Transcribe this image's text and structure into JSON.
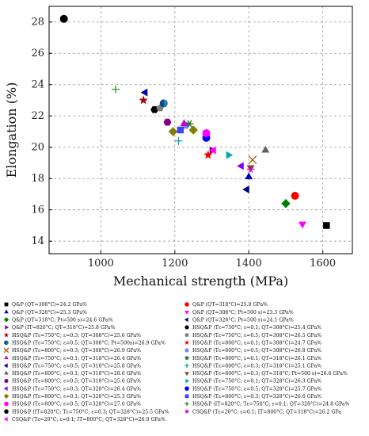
{
  "chart_data": {
    "type": "scatter",
    "xlabel": "Mechanical strength (MPa)",
    "ylabel": "Elongation (%)",
    "xlim": [
      860,
      1680
    ],
    "ylim": [
      13.2,
      29.0
    ],
    "x_ticks": [
      1000,
      1200,
      1400,
      1600
    ],
    "y_ticks": [
      14,
      16,
      18,
      20,
      22,
      24,
      26,
      28
    ],
    "grid": true,
    "legend_position": "below plot, two columns",
    "series": [
      {
        "name": "Q&P (QT=308°C)=24.2 GPa%",
        "marker": "square",
        "color": "#000000",
        "x": 1610,
        "y": 15.0
      },
      {
        "name": "Q&P (QT=318°C)=25.8 GPa%",
        "marker": "circle",
        "color": "#ff0000",
        "x": 1525,
        "y": 16.9
      },
      {
        "name": "Q&P (QT=328°C)=25.3 GPa%",
        "marker": "triangle-up",
        "color": "#0000cc",
        "x": 1400,
        "y": 18.1
      },
      {
        "name": "Q&P (QT=308°C; Pt=500 s)=23.3 GPa%",
        "marker": "triangle-down",
        "color": "#ff00ff",
        "x": 1545,
        "y": 15.1
      },
      {
        "name": "Q&P (QT=318°C; Pt=500 s)=24.6 GPa%",
        "marker": "diamond",
        "color": "#008000",
        "x": 1500,
        "y": 16.4
      },
      {
        "name": "Q&P (QT=328°C; Pt=500 s)=24.1 GPa%",
        "marker": "triangle-left",
        "color": "#000080",
        "x": 1395,
        "y": 17.3
      },
      {
        "name": "Q&P (IT=820°C; QT=318°C)=25.8 GPa%",
        "marker": "triangle-right",
        "color": "#800080",
        "x": 1300,
        "y": 19.8
      },
      {
        "name": "HSQ&P (Tε=750°C; ε=0.1; QT=308°C)=25.4 GPa%",
        "marker": "hexagon",
        "color": "#000000",
        "x": 1145,
        "y": 22.4
      },
      {
        "name": "HSQ&P (Tε=750°C; ε=0.3; QT=308°C)=25.6 GPa%",
        "marker": "star",
        "color": "#b00000",
        "x": 1115,
        "y": 23.0
      },
      {
        "name": "HSQ&P (Tε=750°C; ε=0.5; QT=308°C)=26.5 GPa%",
        "marker": "pentagon",
        "color": "#808080",
        "x": 1160,
        "y": 22.5
      },
      {
        "name": "HSQ&P (Tε=750°C; ε=0.5; QT=308°C; Pt=500s)=26.9 GPa%",
        "marker": "circle-half",
        "color": "#1f77b4",
        "x": 1170,
        "y": 22.8
      },
      {
        "name": "HSQ&P (Tε=800°C; ε=0.1; QT=308°C)=24.7 GPa%",
        "marker": "star",
        "color": "#ff0000",
        "x": 1290,
        "y": 19.5
      },
      {
        "name": "HSQ&P (Tε=800°C; ε=0.3; QT=308°C)=26.9 GPa%",
        "marker": "x",
        "color": "#b05000",
        "x": 1410,
        "y": 19.2
      },
      {
        "name": "HSQ&P (Tε=800°C; ε=0.5; QT=308°C)=26.8 GPa%",
        "marker": "hexagon",
        "color": "#8080ff",
        "x": 1230,
        "y": 21.4
      },
      {
        "name": "HSQ&P (Tε=750°C; ε=0.1; QT=318°C)=26.4 GPa%",
        "marker": "triangle-up",
        "color": "#cc00cc",
        "x": 1225,
        "y": 21.5
      },
      {
        "name": "HSQ&P (Tε=800°C; ε=0.1; QT=318°C)=26.1 GPa%",
        "marker": "asterisk",
        "color": "#006400",
        "x": 1240,
        "y": 21.5
      },
      {
        "name": "HSQ&P (Tε=750°C; ε=0.5; QT=318°C)=25.8 GPa%",
        "marker": "triangle-left",
        "color": "#0000aa",
        "x": 1120,
        "y": 23.5
      },
      {
        "name": "HSQ&P (Tε=800°C; ε=0.3; QT=318°C)=25.1 GPa%",
        "marker": "plus",
        "color": "#00aaaa",
        "x": 1210,
        "y": 20.4
      },
      {
        "name": "HSQ&P (Tε=800°C; ε=0.1; QT=318°C)=28.6 GPa%",
        "marker": "triangle-up",
        "color": "#606060",
        "x": 1445,
        "y": 19.8
      },
      {
        "name": "HSQ&P (Tε=800°C; ε=0.3; QT=318°C; Pt=500 s)=26.6 GPa%",
        "marker": "triangle-down",
        "color": "#8b4513",
        "x": 1405,
        "y": 18.7
      },
      {
        "name": "HSQ&P (Tε=800°C; ε=0.5; QT=318°C)=25.6 GPa%",
        "marker": "hexagon",
        "color": "#800080",
        "x": 1180,
        "y": 21.6
      },
      {
        "name": "HSQ&P (Tε=750°C; ε=0.1; QT=328°C)=26.3 GPa%",
        "marker": "triangle-right",
        "color": "#00aaaa",
        "x": 1345,
        "y": 19.5
      },
      {
        "name": "HSQ&P (Tε=750°C; ε=0.3; QT=328°C)=26.4 GPa%",
        "marker": "triangle-left",
        "color": "#8000ff",
        "x": 1380,
        "y": 18.8
      },
      {
        "name": "HSQ&P (Tε=750°C; ε=0.5; QT=328°C)=25.7 GPa%",
        "marker": "circle",
        "color": "#0000ff",
        "x": 1285,
        "y": 20.6
      },
      {
        "name": "HSQ&P (Tε=800°C; ε=0.1; QT=328°C)=25.3 GPa%",
        "marker": "diamond",
        "color": "#808000",
        "x": 1250,
        "y": 21.1
      },
      {
        "name": "HSQ&P (Tε=800°C; ε=0.3; QT=328°C)=26.6 GPa%",
        "marker": "square",
        "color": "#4040ff",
        "x": 1215,
        "y": 21.1
      },
      {
        "name": "HSQ&P (Tε=800°C; ε=0.5; QT=328°C)=27.0 GPa%",
        "marker": "circle",
        "color": "#ff00ff",
        "x": 1285,
        "y": 20.9
      },
      {
        "name": "HSQ&P (IT=820°C; Tε=750°C; ε=0.1; QT=328°C)=24.8 GPa%",
        "marker": "plus",
        "color": "#228b22",
        "x": 1040,
        "y": 23.7
      },
      {
        "name": "HSQ&P (IT=820°C; Tε=750°C; ε=0.3; QT=328°C)=25.5 GPa%",
        "marker": "circle",
        "color": "#000000",
        "x": 900,
        "y": 28.2
      },
      {
        "name": "CSQ&P (Tε=20°C; ε=0.1; IT=800°C; QT=318°C)=26.2 GPa",
        "marker": "asterisk",
        "color": "#cc00cc",
        "x": 1405,
        "y": 18.6
      },
      {
        "name": "CSQ&P (Tε=20°C; ε=0.1; IT=800°C; QT=328°C)=26.0 GPa%",
        "marker": "triangle-left",
        "color": "#ff00ff",
        "x": 1305,
        "y": 19.8
      },
      {
        "name": "",
        "marker": "diamond",
        "color": "#808000",
        "x": 1195,
        "y": 21.0
      }
    ],
    "legend": [
      {
        "col": 0,
        "marker": "square",
        "color": "#000000",
        "label": "Q&P (QT=308°C)=24.2 GPa%"
      },
      {
        "col": 0,
        "marker": "triangle-up",
        "color": "#0000cc",
        "label": "Q&P (QT=328°C)=25.3 GPa%"
      },
      {
        "col": 0,
        "marker": "diamond",
        "color": "#008000",
        "label": "Q&P (QT=318°C; Pt=500 s)=24.6 GPa%"
      },
      {
        "col": 0,
        "marker": "triangle-right",
        "color": "#800080",
        "label": "Q&P (IT=820°C; QT=318°C)=25.8 GPa%"
      },
      {
        "col": 0,
        "marker": "star",
        "color": "#b00000",
        "label": "HSQ&P (Tε=750°C; ε=0.3; QT=308°C)=25.6 GPa%"
      },
      {
        "col": 0,
        "marker": "circle-half",
        "color": "#1f77b4",
        "label": "HSQ&P (Tε=750°C; ε=0.5; QT=308°C; Pt=500s)=26.9 GPa%"
      },
      {
        "col": 0,
        "marker": "x",
        "color": "#b05000",
        "label": "HSQ&P (Tε=800°C; ε=0.3; QT=308°C)=26.9 GPa%"
      },
      {
        "col": 0,
        "marker": "triangle-up",
        "color": "#cc00cc",
        "label": "HSQ&P (Tε=750°C; ε=0.1; QT=318°C)=26.4 GPa%"
      },
      {
        "col": 0,
        "marker": "triangle-left",
        "color": "#0000aa",
        "label": "HSQ&P (Tε=750°C; ε=0.5; QT=318°C)=25.8 GPa%"
      },
      {
        "col": 0,
        "marker": "triangle-up",
        "color": "#606060",
        "label": "HSQ&P (Tε=800°C; ε=0.1; QT=318°C)=28.6 GPa%"
      },
      {
        "col": 0,
        "marker": "hexagon",
        "color": "#800080",
        "label": "HSQ&P (Tε=800°C; ε=0.5; QT=318°C)=25.6 GPa%"
      },
      {
        "col": 0,
        "marker": "triangle-left",
        "color": "#8000ff",
        "label": "HSQ&P (Tε=750°C; ε=0.3; QT=328°C)=26.4 GPa%"
      },
      {
        "col": 0,
        "marker": "diamond",
        "color": "#808000",
        "label": "HSQ&P (Tε=800°C; ε=0.1; QT=328°C)=25.3 GPa%"
      },
      {
        "col": 0,
        "marker": "circle",
        "color": "#ff00ff",
        "label": "HSQ&P (Tε=800°C; ε=0.5; QT=328°C)=27.0 GPa%"
      },
      {
        "col": 0,
        "marker": "circle",
        "color": "#000000",
        "label": "HSQ&P (IT=820°C; Tε=750°C; ε=0.3; QT=328°C)=25.5 GPa%"
      },
      {
        "col": 0,
        "marker": "triangle-left",
        "color": "#ff00ff",
        "label": "CSQ&P (Tε=20°C; ε=0.1; IT=800°C; QT=328°C)=26.0 GPa%"
      },
      {
        "col": 1,
        "marker": "circle",
        "color": "#ff0000",
        "label": "Q&P (QT=318°C)=25.8 GPa%"
      },
      {
        "col": 1,
        "marker": "triangle-down",
        "color": "#ff00ff",
        "label": "Q&P (QT=308°C; Pt=500 s)=23.3 GPa%"
      },
      {
        "col": 1,
        "marker": "triangle-left",
        "color": "#000080",
        "label": "Q&P (QT=328°C; Pt=500 s)=24.1 GPa%"
      },
      {
        "col": 1,
        "marker": "hexagon",
        "color": "#000000",
        "label": "HSQ&P (Tε=750°C; ε=0.1; QT=308°C)=25.4 GPa%"
      },
      {
        "col": 1,
        "marker": "pentagon",
        "color": "#808080",
        "label": "HSQ&P (Tε=750°C; ε=0.5; QT=308°C)=26.5 GPa%"
      },
      {
        "col": 1,
        "marker": "star",
        "color": "#ff0000",
        "label": "HSQ&P (Tε=800°C; ε=0.1; QT=308°C)=24.7 GPa%"
      },
      {
        "col": 1,
        "marker": "hexagon",
        "color": "#8080ff",
        "label": "HSQ&P (Tε=800°C; ε=0.5; QT=308°C)=26.8 GPa%"
      },
      {
        "col": 1,
        "marker": "asterisk",
        "color": "#006400",
        "label": "HSQ&P (Tε=800°C; ε=0.1; QT=318°C)=26.1 GPa%"
      },
      {
        "col": 1,
        "marker": "plus",
        "color": "#00aaaa",
        "label": "HSQ&P (Tε=800°C; ε=0.3; QT=318°C)=25.1 GPa%"
      },
      {
        "col": 1,
        "marker": "triangle-down",
        "color": "#8b4513",
        "label": "HSQ&P (Tε=800°C; ε=0.3; QT=318°C; Pt=500 s)=26.6 GPa%"
      },
      {
        "col": 1,
        "marker": "triangle-right",
        "color": "#00aaaa",
        "label": "HSQ&P (Tε=750°C; ε=0.1; QT=328°C)=26.3 GPa%"
      },
      {
        "col": 1,
        "marker": "circle",
        "color": "#0000ff",
        "label": "HSQ&P (Tε=750°C; ε=0.5; QT=328°C)=25.7 GPa%"
      },
      {
        "col": 1,
        "marker": "square",
        "color": "#4040ff",
        "label": "HSQ&P (Tε=800°C; ε=0.3; QT=328°C)=26.6 GPa%"
      },
      {
        "col": 1,
        "marker": "plus",
        "color": "#228b22",
        "label": "HSQ&P (IT=820°C; Tε=750°C; ε=0.1; QT=328°C)=24.8 GPa%"
      },
      {
        "col": 1,
        "marker": "asterisk",
        "color": "#cc00cc",
        "label": "CSQ&P (Tε=20°C; ε=0.1; IT=800°C; QT=318°C)=26.2 GPa"
      }
    ]
  }
}
